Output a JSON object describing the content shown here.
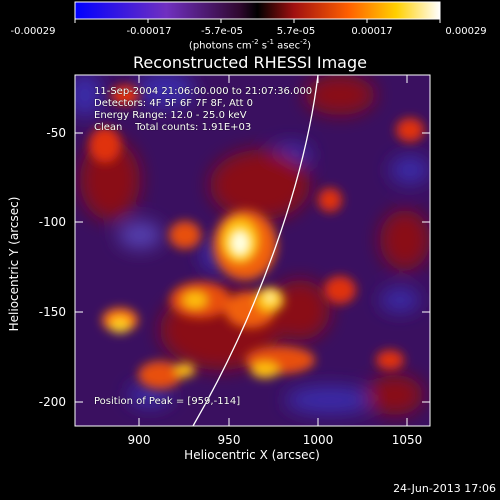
{
  "colorbar": {
    "ticks": [
      "-0.00029",
      "-0.00017",
      "-5.7e-05",
      "5.7e-05",
      "0.00017",
      "0.00029"
    ],
    "units_prefix": "(photons cm",
    "units_exp1": "-2",
    "units_mid": " s",
    "units_exp2": "-1",
    "units_mid2": " asec",
    "units_exp3": "-2",
    "units_suffix": ")",
    "colors": [
      "#0000ff",
      "#7030c0",
      "#501060",
      "#000000",
      "#a01010",
      "#ff6000",
      "#ffd000",
      "#ffffff"
    ]
  },
  "title": "Reconstructed RHESSI Image",
  "info": {
    "line1": "11-Sep-2004 21:06:00.000 to 21:07:36.000",
    "line2": "Detectors: 4F 5F 6F 7F 8F, Att 0",
    "line3": "Energy Range: 12.0 - 25.0 keV",
    "line4": "Clean    Total counts: 1.91E+03",
    "peak": "Position of Peak = [959,-114]"
  },
  "axes": {
    "xlabel": "Heliocentric X (arcsec)",
    "ylabel": "Heliocentric Y (arcsec)",
    "xticks": [
      "900",
      "950",
      "1000",
      "1050"
    ],
    "yticks": [
      "-50",
      "-100",
      "-150",
      "-200"
    ],
    "x_values": [
      900,
      950,
      1000,
      1050
    ],
    "y_values": [
      -50,
      -100,
      -150,
      -200
    ],
    "xlim": [
      866,
      1064
    ],
    "ylim": [
      -212,
      -24
    ]
  },
  "timestamp": "24-Jun-2013 17:06"
}
